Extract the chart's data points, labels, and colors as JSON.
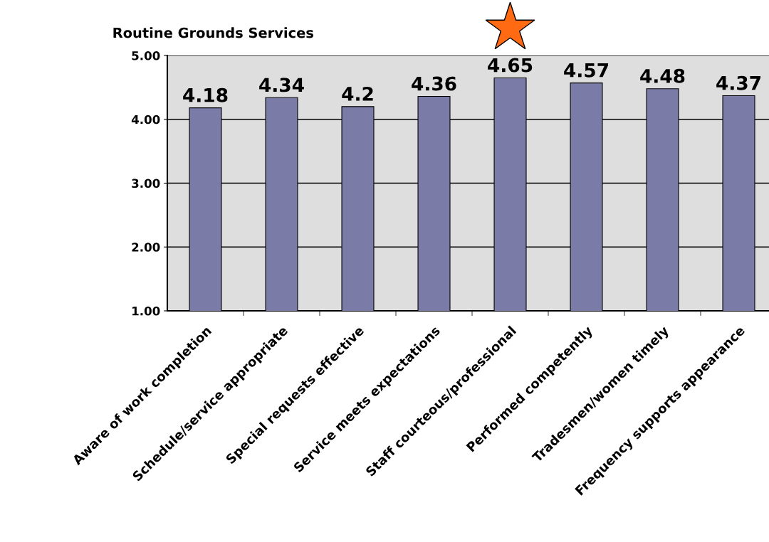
{
  "chart_data": {
    "type": "bar",
    "title": "Routine Grounds Services",
    "categories": [
      "Aware of work completion",
      "Schedule/service appropriate",
      "Special requests effective",
      "Service meets expectations",
      "Staff courteous/professional",
      "Performed competently",
      "Tradesmen/women timely",
      "Frequency supports appearance"
    ],
    "values": [
      4.18,
      4.34,
      4.2,
      4.36,
      4.65,
      4.57,
      4.48,
      4.37
    ],
    "value_labels": [
      "4.18",
      "4.34",
      "4.2",
      "4.36",
      "4.65",
      "4.57",
      "4.48",
      "4.37"
    ],
    "color": "#7b7ba8",
    "ylim": [
      1,
      5
    ],
    "yticks": [
      {
        "value": 1,
        "label": "1.00"
      },
      {
        "value": 2,
        "label": "2.00"
      },
      {
        "value": 3,
        "label": "3.00"
      },
      {
        "value": 4,
        "label": "4.00"
      },
      {
        "value": 5,
        "label": "5.00"
      }
    ],
    "grid": "y"
  }
}
